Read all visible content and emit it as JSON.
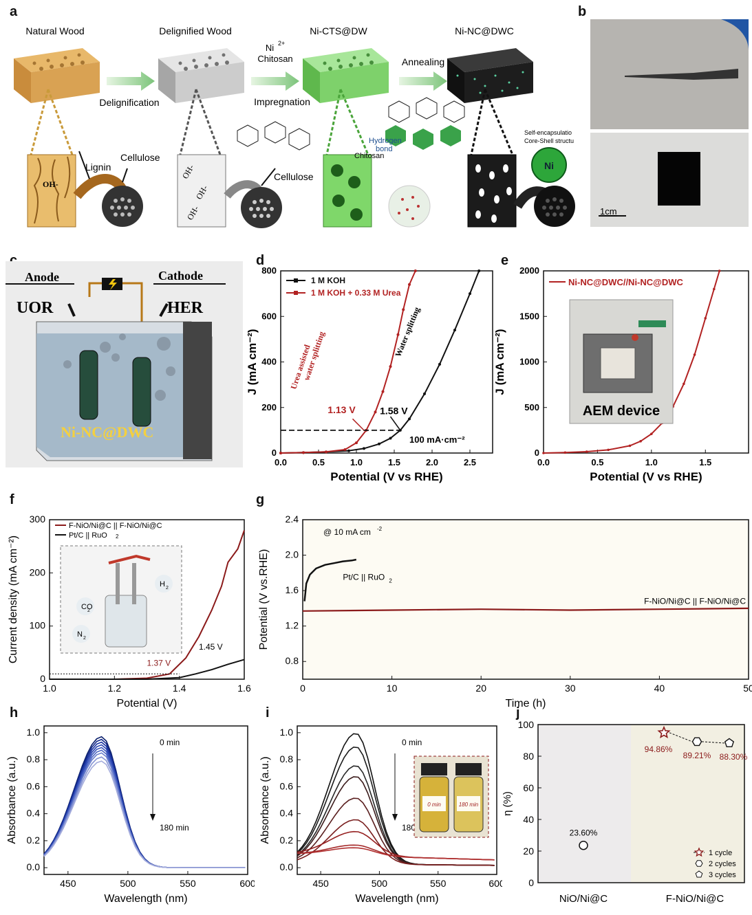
{
  "panel_letters": {
    "a": "a",
    "b": "b",
    "c": "c",
    "d": "d",
    "e": "e",
    "f": "f",
    "g": "g",
    "h": "h",
    "i": "i",
    "j": "j"
  },
  "panel_a": {
    "stages": [
      "Natural Wood",
      "Delignified Wood",
      "Ni-CTS@DW",
      "Ni-NC@DWC"
    ],
    "steps": {
      "s1": "Delignification",
      "s2a": "Ni",
      "s2sup": "2+",
      "s2b": "Chitosan",
      "s2c": "Impregnation",
      "s3": "Annealing"
    },
    "labels": {
      "lignin": "Lignin",
      "cellulose1": "Cellulose",
      "cellulose2": "Cellulose",
      "chitosan": "Chitosan",
      "hbond1": "Hydrogen",
      "hbond2": "bond",
      "self1": "Self-encapsulatio",
      "self2": "Core-Shell structu",
      "ni": "Ni",
      "oh": "OH-"
    },
    "colors": {
      "natural": "#d9a253",
      "delignified": "#bfbfbf",
      "nicts": "#7ed16b",
      "ninc": "#1d1d1d",
      "arrow": "#8fd18a"
    }
  },
  "panel_b": {
    "scale": "1cm"
  },
  "panel_c": {
    "anode": "Anode",
    "cathode": "Cathode",
    "uor": "UOR",
    "her": "HER",
    "electrode": "Ni-NC@DWC"
  },
  "panel_d": {
    "chart_data": {
      "type": "line",
      "xlabel": "Potential (V vs RHE)",
      "ylabel": "J (mA cm⁻²)",
      "xlim": [
        0,
        2.8
      ],
      "ylim": [
        0,
        800
      ],
      "xticks": [
        "0.0",
        "0.5",
        "1.0",
        "1.5",
        "2.0",
        "2.5"
      ],
      "yticks": [
        "0",
        "200",
        "400",
        "600",
        "800"
      ],
      "series": [
        {
          "name": "1 M KOH",
          "color": "#111111",
          "x": [
            0,
            0.3,
            0.6,
            0.9,
            1.1,
            1.3,
            1.45,
            1.58,
            1.7,
            1.9,
            2.1,
            2.3,
            2.5,
            2.62
          ],
          "y": [
            0,
            2,
            5,
            10,
            20,
            40,
            65,
            100,
            150,
            260,
            390,
            540,
            700,
            800
          ]
        },
        {
          "name": "1 M KOH + 0.33 M Urea",
          "color": "#b22222",
          "x": [
            0,
            0.3,
            0.6,
            0.85,
            1.0,
            1.13,
            1.25,
            1.35,
            1.45,
            1.55,
            1.62,
            1.7,
            1.78
          ],
          "y": [
            0,
            2,
            5,
            15,
            45,
            100,
            180,
            270,
            380,
            520,
            630,
            740,
            800
          ]
        }
      ],
      "annotations": {
        "urea1": "Urea assisted",
        "urea2": "water splitting",
        "water": "Water splitting",
        "v1": "1.13 V",
        "v2": "1.58 V",
        "ref": "100 mA·cm⁻²"
      }
    }
  },
  "panel_e": {
    "chart_data": {
      "type": "line",
      "xlabel": "Potential (V vs RHE)",
      "ylabel": "J (mA cm⁻²)",
      "xlim": [
        0,
        1.9
      ],
      "ylim": [
        0,
        2000
      ],
      "xticks": [
        "0.0",
        "0.5",
        "1.0",
        "1.5"
      ],
      "yticks": [
        "0",
        "500",
        "1000",
        "1500",
        "2000"
      ],
      "series": [
        {
          "name": "Ni-NC@DWC//Ni-NC@DWC",
          "color": "#b22222",
          "x": [
            0,
            0.2,
            0.4,
            0.6,
            0.8,
            0.9,
            1.0,
            1.1,
            1.2,
            1.3,
            1.4,
            1.5,
            1.58,
            1.63
          ],
          "y": [
            0,
            5,
            15,
            35,
            80,
            130,
            210,
            330,
            510,
            760,
            1080,
            1480,
            1800,
            2000
          ]
        }
      ],
      "inset_label": "AEM device"
    }
  },
  "panel_f": {
    "chart_data": {
      "type": "line",
      "xlabel": "Potential (V)",
      "ylabel": "Current density (mA cm⁻²)",
      "xlim": [
        1.0,
        1.6
      ],
      "ylim": [
        0,
        300
      ],
      "xticks": [
        "1.0",
        "1.2",
        "1.4",
        "1.6"
      ],
      "yticks": [
        "0",
        "100",
        "200",
        "300"
      ],
      "series": [
        {
          "name": "F-NiO/Ni@C || F-NiO/Ni@C",
          "color": "#8b1a1a",
          "x": [
            1.0,
            1.2,
            1.3,
            1.37,
            1.42,
            1.46,
            1.5,
            1.53,
            1.55,
            1.58,
            1.6
          ],
          "y": [
            0,
            0,
            2,
            10,
            40,
            80,
            130,
            175,
            220,
            245,
            280
          ]
        },
        {
          "name": "Pt/C || RuO2",
          "color": "#111111",
          "x": [
            1.0,
            1.3,
            1.4,
            1.45,
            1.5,
            1.55,
            1.6
          ],
          "y": [
            0,
            0,
            3,
            10,
            18,
            28,
            37
          ]
        }
      ],
      "annotations": {
        "v1": "1.37 V",
        "v2": "1.45 V",
        "co2": "CO",
        "co2sub": "2",
        "h2": "H",
        "h2sub": "2",
        "n2": "N",
        "n2sub": "2"
      }
    }
  },
  "panel_g": {
    "chart_data": {
      "type": "line",
      "xlabel": "Time (h)",
      "ylabel": "Potential (V vs.RHE)",
      "xlim": [
        0,
        50
      ],
      "ylim": [
        0.6,
        2.4
      ],
      "xticks": [
        "0",
        "10",
        "20",
        "30",
        "40",
        "50"
      ],
      "yticks": [
        "0.8",
        "1.2",
        "1.6",
        "2.0",
        "2.4"
      ],
      "series": [
        {
          "name": "Pt/C || RuO2",
          "color": "#111111",
          "x": [
            0.2,
            0.4,
            0.8,
            1.5,
            2.5,
            3.5,
            4.5,
            5.5,
            6.0
          ],
          "y": [
            1.48,
            1.68,
            1.78,
            1.85,
            1.89,
            1.91,
            1.93,
            1.94,
            1.95
          ]
        },
        {
          "name": "F-NiO/Ni@C || F-NiO/Ni@C",
          "color": "#8b1a1a",
          "x": [
            0,
            10,
            20,
            30,
            40,
            50
          ],
          "y": [
            1.37,
            1.38,
            1.39,
            1.38,
            1.39,
            1.4
          ]
        }
      ],
      "annotations": {
        "cond": "@ 10 mA cm",
        "condsup": "-2"
      }
    }
  },
  "panel_h": {
    "chart_data": {
      "type": "line",
      "xlabel": "Wavelength (nm)",
      "ylabel": "Absorbance (a.u.)",
      "xlim": [
        430,
        600
      ],
      "ylim": [
        -0.05,
        1.05
      ],
      "xticks": [
        "450",
        "500",
        "550",
        "600"
      ],
      "yticks": [
        "0.0",
        "0.2",
        "0.4",
        "0.6",
        "0.8",
        "1.0"
      ],
      "peak_nm": 478,
      "peaks": [
        0.97,
        0.95,
        0.93,
        0.91,
        0.89,
        0.87,
        0.85,
        0.82,
        0.79
      ],
      "annotations": {
        "start": "0 min",
        "end": "180 min"
      }
    }
  },
  "panel_i": {
    "chart_data": {
      "type": "line",
      "xlabel": "Wavelength (nm)",
      "ylabel": "Absorbance (a.u.)",
      "xlim": [
        430,
        600
      ],
      "ylim": [
        -0.05,
        1.05
      ],
      "xticks": [
        "450",
        "500",
        "550",
        "600"
      ],
      "yticks": [
        "0.0",
        "0.2",
        "0.4",
        "0.6",
        "0.8",
        "1.0"
      ],
      "peak_nm": 480,
      "peaks": [
        0.97,
        0.87,
        0.73,
        0.65,
        0.49,
        0.33,
        0.18,
        0.08,
        0.06
      ],
      "annotations": {
        "start": "0 min",
        "end": "180 min",
        "vial1": "0 min",
        "vial2": "180 min"
      }
    }
  },
  "panel_j": {
    "chart_data": {
      "type": "scatter",
      "ylabel": "η (%)",
      "categories": [
        "NiO/Ni@C",
        "F-NiO/Ni@C"
      ],
      "ylim": [
        0,
        100
      ],
      "yticks": [
        "0",
        "20",
        "40",
        "60",
        "80",
        "100"
      ],
      "points": [
        {
          "category": "NiO/Ni@C",
          "y": 23.6,
          "label": "23.60%"
        },
        {
          "category": "F-NiO/Ni@C",
          "y": 94.86,
          "label": "94.86%"
        },
        {
          "category": "F-NiO/Ni@C",
          "y": 89.21,
          "label": "89.21%"
        },
        {
          "category": "F-NiO/Ni@C",
          "y": 88.3,
          "label": "88.30%"
        }
      ],
      "legend": [
        "1 cycle",
        "2 cycles",
        "3 cycles"
      ],
      "accent": "#8b1a1a"
    }
  }
}
